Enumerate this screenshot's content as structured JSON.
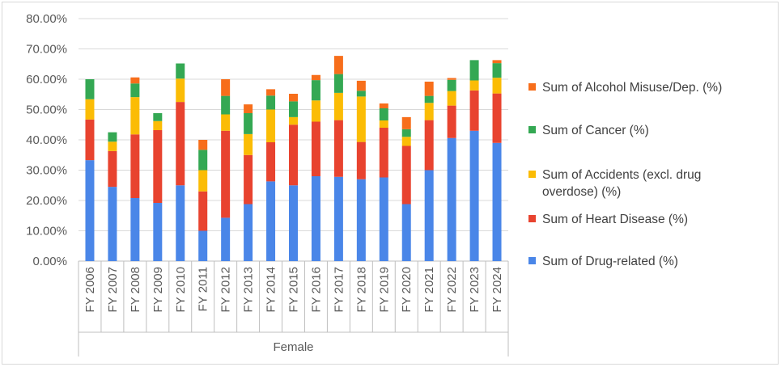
{
  "chart_data": {
    "type": "bar",
    "stacked": true,
    "title": "",
    "xlabel": "",
    "ylabel": "",
    "group_label": "Female",
    "categories": [
      "FY 2006",
      "FY 2007",
      "FY 2008",
      "FY 2009",
      "FY 2010",
      "FY 2011",
      "FY 2012",
      "FY 2013",
      "FY 2014",
      "FY 2015",
      "FY 2016",
      "FY 2017",
      "FY 2018",
      "FY 2019",
      "FY 2020",
      "FY 2021",
      "FY 2022",
      "FY 2023",
      "FY 2024"
    ],
    "ylim": [
      0,
      80
    ],
    "y_ticks": [
      0,
      10,
      20,
      30,
      40,
      50,
      60,
      70,
      80
    ],
    "y_tick_labels": [
      "0.00%",
      "10.00%",
      "20.00%",
      "30.00%",
      "40.00%",
      "50.00%",
      "60.00%",
      "70.00%",
      "80.00%"
    ],
    "legend_position": "right",
    "series": [
      {
        "name": "Sum of Drug-related (%)",
        "color": "#4a86e8",
        "values": [
          33.3,
          24.5,
          20.8,
          19.2,
          25.0,
          10.0,
          14.3,
          18.8,
          26.3,
          25.0,
          28.0,
          27.8,
          27.0,
          27.6,
          18.8,
          30.0,
          40.6,
          43.0,
          39.0
        ]
      },
      {
        "name": "Sum of Heart Disease (%)",
        "color": "#e8432f",
        "values": [
          13.4,
          11.8,
          21.0,
          24.0,
          27.5,
          13.0,
          28.7,
          16.2,
          12.9,
          20.0,
          18.0,
          18.7,
          12.3,
          16.4,
          19.2,
          16.5,
          10.7,
          13.3,
          16.3
        ]
      },
      {
        "name": "Sum of Accidents (excl. drug overdose) (%)",
        "color": "#fbbc05",
        "values": [
          6.7,
          3.1,
          12.3,
          3.0,
          7.7,
          7.0,
          5.4,
          6.9,
          10.8,
          2.5,
          7.0,
          9.0,
          15.0,
          2.4,
          3.0,
          5.7,
          4.8,
          3.3,
          5.2
        ]
      },
      {
        "name": "Sum of Cancer (%)",
        "color": "#34a853",
        "values": [
          6.6,
          3.1,
          4.5,
          2.6,
          5.0,
          6.7,
          6.1,
          6.9,
          4.6,
          5.2,
          6.7,
          6.2,
          1.9,
          4.0,
          2.5,
          2.3,
          3.7,
          6.7,
          4.8
        ]
      },
      {
        "name": "Sum of Alcohol Misuse/Dep. (%)",
        "color": "#f76e1b",
        "values": [
          0,
          0,
          2.0,
          0,
          0,
          3.3,
          5.5,
          2.9,
          2.1,
          2.5,
          1.7,
          6.0,
          3.3,
          1.6,
          4.0,
          4.7,
          0.6,
          0,
          1.0
        ]
      }
    ],
    "legend_order": [
      4,
      3,
      2,
      1,
      0
    ],
    "legend_lines": [
      [
        "Sum of Alcohol Misuse/Dep. (%)"
      ],
      [
        "Sum of Cancer (%)"
      ],
      [
        "Sum of Accidents (excl. drug",
        "overdose) (%)"
      ],
      [
        "Sum of Heart Disease (%)"
      ],
      [
        "Sum of Drug-related (%)"
      ]
    ]
  }
}
